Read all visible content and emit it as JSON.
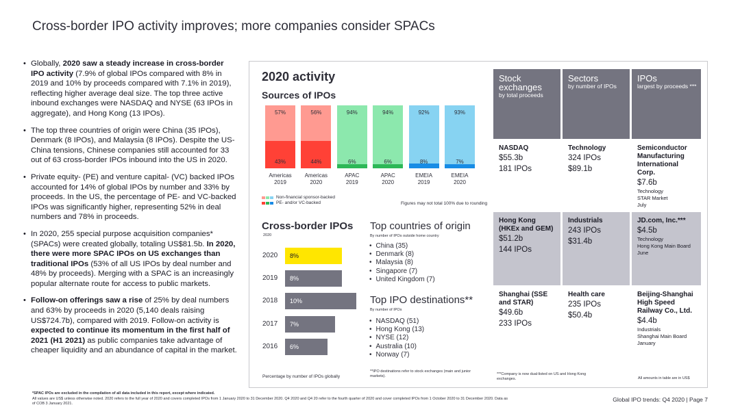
{
  "title": "Cross-border IPO activity improves; more companies consider SPACs",
  "colors": {
    "salmon": "#ff9a91",
    "red": "#ff4136",
    "lightgreen": "#8ce8ad",
    "green": "#2db757",
    "lightblue": "#87d3f2",
    "blue": "#188ce5",
    "yellow": "#ffe600",
    "greybar": "#747480",
    "darkcell": "#747480",
    "lightcell": "#c4c4cd"
  },
  "bullets": [
    {
      "parts": [
        {
          "t": "Globally, ",
          "b": false
        },
        {
          "t": "2020 saw a steady increase in cross-border IPO activity",
          "b": true
        },
        {
          "t": " (7.9% of global IPOs compared with 8% in 2019 and 10% by proceeds compared with 7.1% in 2019), reflecting higher average deal size. The top three active inbound exchanges were NASDAQ and NYSE (63 IPOs in aggregate), and Hong Kong (13 IPOs).",
          "b": false
        }
      ]
    },
    {
      "parts": [
        {
          "t": "The top three countries of origin were China (35 IPOs), Denmark (8 IPOs), and Malaysia (8 IPOs). Despite the US-China tensions, Chinese companies still accounted for 33 out of 63 cross-border IPOs inbound into the US in 2020.",
          "b": false
        }
      ]
    },
    {
      "parts": [
        {
          "t": "Private equity- (PE) and venture capital- (VC) backed IPOs accounted for 14% of global IPOs by number and 33% by proceeds. In the US, the percentage of PE- and VC-backed IPOs was significantly higher, representing 52% in deal numbers and 78% in proceeds.",
          "b": false
        }
      ]
    },
    {
      "parts": [
        {
          "t": "In 2020, 255 special purpose acquisition companies* (SPACs) were created globally, totaling US$81.5b. ",
          "b": false
        },
        {
          "t": "In 2020, there were more SPAC IPOs on US exchanges than traditional IPOs",
          "b": true
        },
        {
          "t": " (53% of all US IPOs by deal number and 48% by proceeds). Merging with a SPAC is an increasingly popular alternate route for access to public markets.",
          "b": false
        }
      ]
    },
    {
      "parts": [
        {
          "t": "Follow-on offerings saw a rise",
          "b": true
        },
        {
          "t": " of 25% by deal numbers and 63% by proceeds in 2020 (5,140 deals raising US$724.7b), compared with 2019. Follow-on activity is ",
          "b": false
        },
        {
          "t": "expected to continue its momentum in the first half of 2021 (H1 2021)",
          "b": true
        },
        {
          "t": " as public companies take advantage of cheaper liquidity and an abundance of capital in the market.",
          "b": false
        }
      ]
    }
  ],
  "activity": {
    "title": "2020 activity",
    "sources_title": "Sources of IPOs",
    "legend_non": "Non-financial sponsor-backed",
    "legend_pe": "PE- and/or VC-backed",
    "figures_note": "Figures may not total 100% due to rounding"
  },
  "chart_data": {
    "type": "bar",
    "stacked": true,
    "title": "Sources of IPOs",
    "categories": [
      "Americas 2019",
      "Americas 2020",
      "APAC 2019",
      "APAC 2020",
      "EMEIA 2019",
      "EMEIA 2020"
    ],
    "category_lines": [
      [
        "Americas",
        "2019"
      ],
      [
        "Americas",
        "2020"
      ],
      [
        "APAC",
        "2019"
      ],
      [
        "APAC",
        "2020"
      ],
      [
        "EMEIA",
        "2019"
      ],
      [
        "EMEIA",
        "2020"
      ]
    ],
    "series": [
      {
        "name": "Non-financial sponsor-backed",
        "values": [
          57,
          56,
          94,
          94,
          92,
          93
        ],
        "labels": [
          "57%",
          "56%",
          "94%",
          "94%",
          "92%",
          "93%"
        ],
        "colors": [
          "#ff9a91",
          "#ff9a91",
          "#8ce8ad",
          "#8ce8ad",
          "#87d3f2",
          "#87d3f2"
        ]
      },
      {
        "name": "PE- and/or VC-backed",
        "values": [
          43,
          44,
          6,
          6,
          8,
          7
        ],
        "labels": [
          "43%",
          "44%",
          "6%",
          "6%",
          "8%",
          "7%"
        ],
        "colors": [
          "#ff4136",
          "#ff4136",
          "#2db757",
          "#2db757",
          "#188ce5",
          "#188ce5"
        ]
      }
    ],
    "ylim": [
      0,
      100
    ]
  },
  "table": {
    "headers": [
      {
        "big": "Stock exchanges",
        "small": "by total proceeds"
      },
      {
        "big": "Sectors",
        "small": "by number of IPOs"
      },
      {
        "big": "IPOs",
        "small": "largest by proceeds ***"
      }
    ],
    "rows": [
      [
        {
          "name": "NASDAQ",
          "lines": [
            "$55.3b",
            "181 IPOs"
          ],
          "small": []
        },
        {
          "name": "Technology",
          "lines": [
            "324 IPOs",
            "$89.1b"
          ],
          "small": []
        },
        {
          "name": "Semiconductor Manufacturing International Corp.",
          "lines": [
            "$7.6b"
          ],
          "small": [
            "Technology",
            "STAR Market",
            "July"
          ]
        }
      ],
      [
        {
          "name": "Hong Kong (HKEx and GEM)",
          "lines": [
            "$51.2b",
            "144 IPOs"
          ],
          "small": []
        },
        {
          "name": "Industrials",
          "lines": [
            "243 IPOs",
            "$31.4b"
          ],
          "small": []
        },
        {
          "name": "JD.com, Inc.***",
          "lines": [
            "$4.5b"
          ],
          "small": [
            "Technology",
            "Hong Kong Main Board",
            "June"
          ]
        }
      ],
      [
        {
          "name": "Shanghai (SSE and STAR)",
          "lines": [
            "$49.6b",
            "233 IPOs"
          ],
          "small": []
        },
        {
          "name": "Health care",
          "lines": [
            "235 IPOs",
            "$50.4b"
          ],
          "small": []
        },
        {
          "name": "Beijing-Shanghai High Speed Railway Co., Ltd.",
          "lines": [
            "$4.4b"
          ],
          "small": [
            "Industrials",
            "Shanghai Main Board",
            "January"
          ]
        }
      ]
    ]
  },
  "crossborder": {
    "title": "Cross-border IPOs",
    "year": "2020",
    "note": "Percentage by number of IPOs globally",
    "bars": [
      {
        "year": "2020",
        "label": "8%",
        "value": 8,
        "highlight": true
      },
      {
        "year": "2019",
        "label": "8%",
        "value": 8,
        "highlight": false
      },
      {
        "year": "2018",
        "label": "10%",
        "value": 10,
        "highlight": false
      },
      {
        "year": "2017",
        "label": "7%",
        "value": 7,
        "highlight": false
      },
      {
        "year": "2016",
        "label": "6%",
        "value": 6,
        "highlight": false
      }
    ]
  },
  "top_origin": {
    "title": "Top countries of origin",
    "sub": "By number of IPOs outside home country",
    "items": [
      "China (35)",
      "Denmark (8)",
      "Malaysia (8)",
      "Singapore (7)",
      "United Kingdom (7)"
    ]
  },
  "top_dest": {
    "title": "Top IPO destinations**",
    "sub": "By number of IPOs",
    "items": [
      "NASDAQ (51)",
      "Hong Kong (13)",
      "NYSE (12)",
      "Australia (10)",
      "Norway (7)"
    ],
    "note": "**IPO destinations refer to stock exchanges (main and junior markets)."
  },
  "company_note": "***Company is now dual-listed on US and Hong Kong exchanges.",
  "amounts_note": "All amounts in table are in US$",
  "footnote_bold": "*SPAC IPOs are excluded in the compilation of all data included in this report, except where indicated.",
  "footnote_rest": "All values are US$ unless otherwise noted. 2020 refers to the full year of 2020 and covers completed IPOs from 1 January 2020 to 31 December 2020. Q4 2020 and Q4 20 refer to the fourth quarter of 2020 and cover completed IPOs from 1 October 2020 to 31 December 2020. Data as of COB 3 January 2021.",
  "page_footer": "Global IPO trends: Q4 2020  |  Page 7"
}
